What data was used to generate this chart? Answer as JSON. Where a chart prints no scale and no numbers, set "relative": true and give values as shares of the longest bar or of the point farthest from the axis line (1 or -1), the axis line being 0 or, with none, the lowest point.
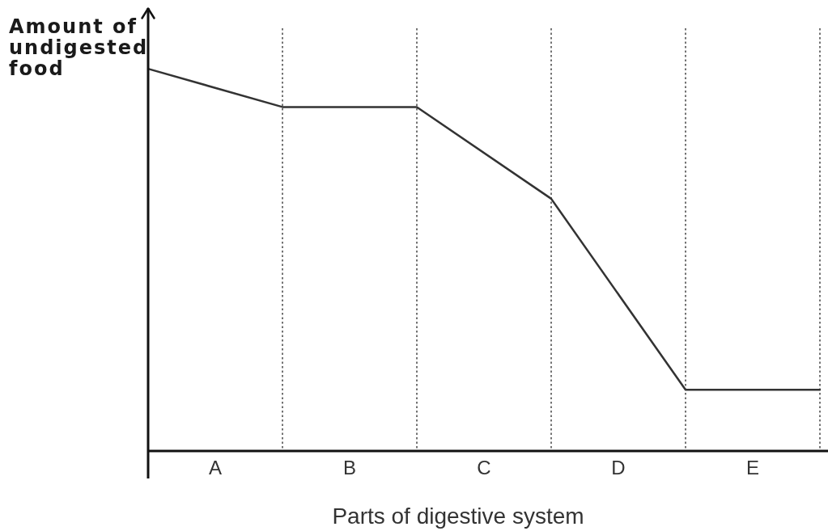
{
  "chart_data": {
    "type": "line",
    "relative": true,
    "xlabel": "Parts of digestive system",
    "ylabel": "Amount of undigested food",
    "categories": [
      null,
      null,
      null,
      null,
      null,
      null
    ],
    "values": [
      1,
      0.9,
      0.9,
      0.66,
      0.16,
      0.16
    ],
    "color": "#333333",
    "grid": "x",
    "annotations": [
      "A",
      "B",
      "C",
      "D",
      "E"
    ]
  }
}
